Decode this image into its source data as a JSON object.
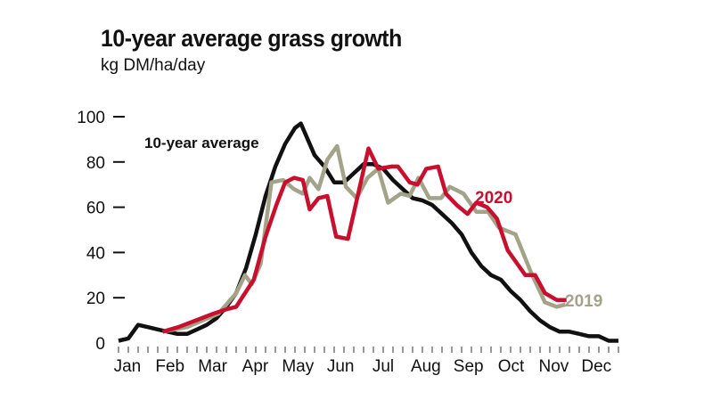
{
  "chart_data": {
    "type": "line",
    "title": "10-year average grass growth",
    "subtitle": "kg DM/ha/day",
    "xlabel": "",
    "ylabel": "kg DM/ha/day",
    "x_unit": "week of year",
    "xlim": [
      1,
      52
    ],
    "ylim": [
      0,
      100
    ],
    "yticks": [
      0,
      20,
      40,
      60,
      80,
      100
    ],
    "month_labels": [
      "Jan",
      "Feb",
      "Mar",
      "Apr",
      "May",
      "Jun",
      "Jul",
      "Aug",
      "Sep",
      "Oct",
      "Nov",
      "Dec"
    ],
    "grid": false,
    "series": [
      {
        "name": "10-year average",
        "color": "#111111",
        "x": [
          1,
          2,
          3,
          4,
          5,
          6,
          7,
          8,
          9,
          10,
          11,
          12,
          13,
          14,
          15,
          16,
          17,
          18,
          19,
          19.6,
          21,
          22,
          23,
          24,
          25,
          26,
          27,
          28,
          29,
          30,
          31,
          32,
          33,
          34,
          35,
          36,
          37,
          38,
          39,
          40,
          41,
          42,
          43,
          44,
          45,
          46,
          47,
          48,
          49,
          50,
          51,
          52
        ],
        "y": [
          1,
          2,
          8,
          7,
          6,
          5,
          4,
          4,
          6,
          8,
          11,
          16,
          22,
          33,
          48,
          65,
          78,
          88,
          95,
          97,
          83,
          78,
          71,
          71,
          75,
          79,
          79,
          77,
          72,
          68,
          64,
          63,
          61,
          57,
          53,
          48,
          40,
          34,
          30,
          28,
          23,
          19,
          14,
          10,
          7,
          5,
          5,
          4,
          3,
          3,
          1,
          1
        ]
      },
      {
        "name": "2020",
        "color": "#c8102e",
        "x": [
          5.5,
          7.1,
          8.9,
          10.7,
          12.1,
          13,
          13.9,
          14.8,
          16,
          17.1,
          18,
          18.9,
          19.8,
          20.5,
          21.4,
          22.3,
          23.2,
          24.4,
          26.5,
          27.5,
          28.9,
          29.5,
          30.7,
          31.5,
          32.4,
          33.6,
          34.4,
          35.5,
          36.6,
          37.5,
          38.6,
          39.6,
          40.7,
          42.5,
          43.5,
          44.5,
          45.7,
          46.7
        ],
        "y": [
          5,
          7,
          10,
          13,
          15,
          16,
          22,
          28,
          47,
          61,
          71,
          73,
          72,
          59,
          64,
          65,
          47,
          46,
          86,
          77,
          78,
          78,
          71,
          70,
          77,
          78,
          66,
          61,
          57,
          62,
          60,
          55,
          41,
          30,
          30,
          22,
          19,
          19
        ]
      },
      {
        "name": "2019",
        "color": "#a3a38a",
        "x": [
          5.5,
          8,
          11.2,
          13,
          13.9,
          14.6,
          15.5,
          16.6,
          17.8,
          18.9,
          19.8,
          20.5,
          21.4,
          22.3,
          23.3,
          24.2,
          25.3,
          26.4,
          27.5,
          28.5,
          29.8,
          30.7,
          31.6,
          32.7,
          33.9,
          34.8,
          36.2,
          37.5,
          38.7,
          39.8,
          41.5,
          43.1,
          44.5,
          45.7,
          46.6
        ],
        "y": [
          5,
          7,
          13,
          22,
          30,
          26,
          35,
          71,
          72,
          68,
          66,
          73,
          68,
          81,
          87,
          69,
          64,
          73,
          77,
          62,
          66,
          65,
          73,
          64,
          64,
          69,
          66,
          58,
          58,
          51,
          48,
          31,
          18,
          16,
          17
        ]
      }
    ],
    "annotations": [
      "10-year average",
      "2020",
      "2019"
    ]
  }
}
